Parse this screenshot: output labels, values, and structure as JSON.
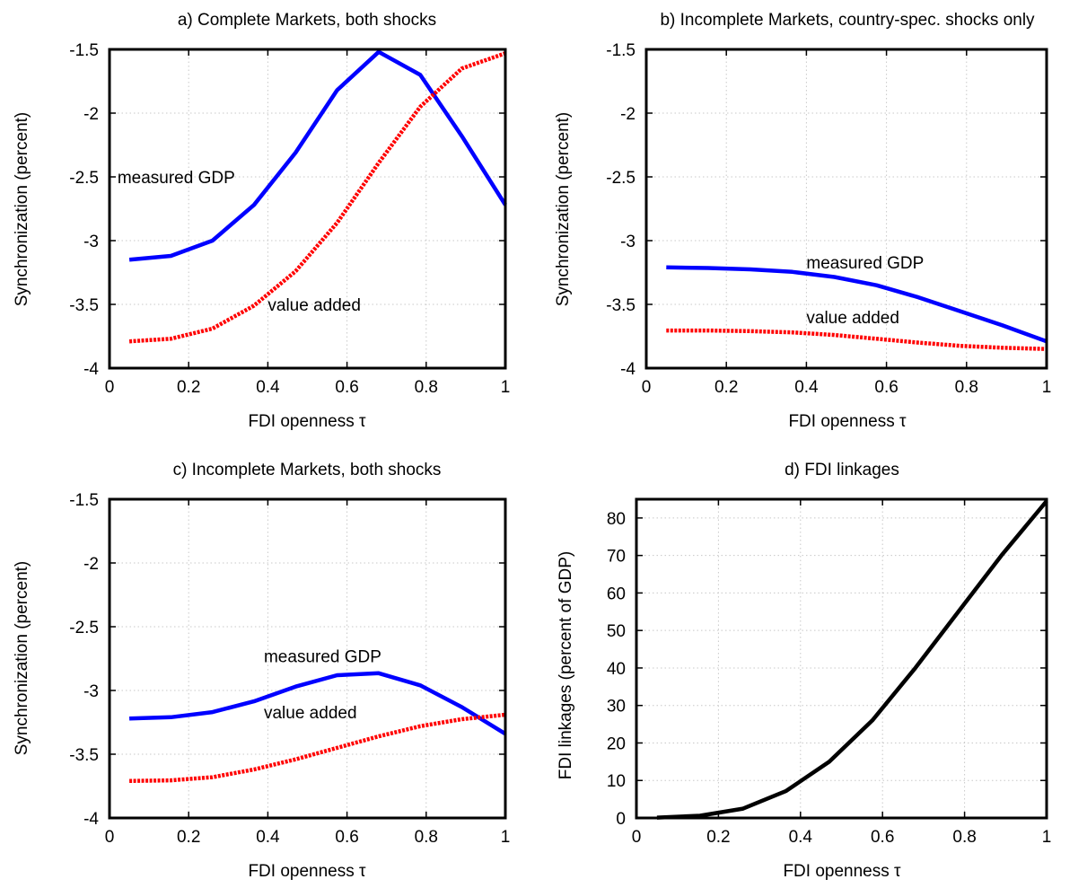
{
  "chart_data": [
    {
      "type": "line",
      "title": "a) Complete Markets, both shocks",
      "xlabel": "FDI openness τ",
      "ylabel": "Synchronization (percent)",
      "xlim": [
        0,
        1
      ],
      "ylim": [
        -4,
        -1.5
      ],
      "xticks": [
        "0",
        "0.2",
        "0.4",
        "0.6",
        "0.8",
        "1"
      ],
      "yticks": [
        "-4",
        "-3.5",
        "-3",
        "-2.5",
        "-2",
        "-1.5"
      ],
      "grid": true,
      "x": [
        0.05,
        0.155,
        0.26,
        0.365,
        0.47,
        0.575,
        0.68,
        0.785,
        0.89,
        1.0
      ],
      "series": [
        {
          "name": "measured GDP",
          "color": "#0000ff",
          "style": "solid",
          "values": [
            -3.15,
            -3.12,
            -3.0,
            -2.72,
            -2.31,
            -1.82,
            -1.52,
            -1.7,
            -2.18,
            -2.72
          ]
        },
        {
          "name": "value added",
          "color": "#ff0000",
          "style": "dotted",
          "values": [
            -3.79,
            -3.77,
            -3.69,
            -3.51,
            -3.24,
            -2.86,
            -2.39,
            -1.95,
            -1.65,
            -1.53
          ]
        }
      ],
      "annotations": [
        {
          "text": "measured GDP",
          "x": 0.02,
          "y": -2.5
        },
        {
          "text": "value added",
          "x": 0.4,
          "y": -3.5
        }
      ]
    },
    {
      "type": "line",
      "title": "b) Incomplete Markets, country-spec. shocks only",
      "xlabel": "FDI openness τ",
      "ylabel": "Synchronization (percent)",
      "xlim": [
        0,
        1
      ],
      "ylim": [
        -4,
        -1.5
      ],
      "xticks": [
        "0",
        "0.2",
        "0.4",
        "0.6",
        "0.8",
        "1"
      ],
      "yticks": [
        "-4",
        "-3.5",
        "-3",
        "-2.5",
        "-2",
        "-1.5"
      ],
      "grid": true,
      "x": [
        0.05,
        0.155,
        0.26,
        0.365,
        0.47,
        0.575,
        0.68,
        0.785,
        0.89,
        1.0
      ],
      "series": [
        {
          "name": "measured GDP",
          "color": "#0000ff",
          "style": "solid",
          "values": [
            -3.21,
            -3.215,
            -3.225,
            -3.245,
            -3.285,
            -3.35,
            -3.445,
            -3.555,
            -3.665,
            -3.79
          ]
        },
        {
          "name": "value added",
          "color": "#ff0000",
          "style": "dotted",
          "values": [
            -3.705,
            -3.705,
            -3.71,
            -3.72,
            -3.74,
            -3.77,
            -3.8,
            -3.825,
            -3.84,
            -3.85
          ]
        }
      ],
      "annotations": [
        {
          "text": "measured GDP",
          "x": 0.4,
          "y": -3.17
        },
        {
          "text": "value added",
          "x": 0.4,
          "y": -3.6
        }
      ]
    },
    {
      "type": "line",
      "title": "c) Incomplete Markets, both shocks",
      "xlabel": "FDI openness τ",
      "ylabel": "Synchronization (percent)",
      "xlim": [
        0,
        1
      ],
      "ylim": [
        -4,
        -1.5
      ],
      "xticks": [
        "0",
        "0.2",
        "0.4",
        "0.6",
        "0.8",
        "1"
      ],
      "yticks": [
        "-4",
        "-3.5",
        "-3",
        "-2.5",
        "-2",
        "-1.5"
      ],
      "grid": true,
      "x": [
        0.05,
        0.155,
        0.26,
        0.365,
        0.47,
        0.575,
        0.68,
        0.785,
        0.89,
        1.0
      ],
      "series": [
        {
          "name": "measured GDP",
          "color": "#0000ff",
          "style": "solid",
          "values": [
            -3.22,
            -3.21,
            -3.17,
            -3.085,
            -2.97,
            -2.88,
            -2.865,
            -2.96,
            -3.13,
            -3.34
          ]
        },
        {
          "name": "value added",
          "color": "#ff0000",
          "style": "dotted",
          "values": [
            -3.71,
            -3.705,
            -3.68,
            -3.62,
            -3.54,
            -3.45,
            -3.36,
            -3.28,
            -3.225,
            -3.19
          ]
        }
      ],
      "annotations": [
        {
          "text": "measured GDP",
          "x": 0.39,
          "y": -2.73
        },
        {
          "text": "value added",
          "x": 0.39,
          "y": -3.17
        }
      ]
    },
    {
      "type": "line",
      "title": "d) FDI linkages",
      "xlabel": "FDI openness τ",
      "ylabel": "FDI linkages (percent of GDP)",
      "xlim": [
        0,
        1
      ],
      "ylim": [
        0,
        85
      ],
      "xticks": [
        "0",
        "0.2",
        "0.4",
        "0.6",
        "0.8",
        "1"
      ],
      "yticks": [
        "0",
        "10",
        "20",
        "30",
        "40",
        "50",
        "60",
        "70",
        "80"
      ],
      "grid": true,
      "x": [
        0.05,
        0.155,
        0.26,
        0.365,
        0.47,
        0.575,
        0.68,
        0.785,
        0.89,
        1.0
      ],
      "series": [
        {
          "name": "",
          "color": "#000000",
          "style": "solid",
          "values": [
            0.1,
            0.6,
            2.5,
            7.2,
            15.0,
            26.0,
            40.0,
            55.0,
            70.0,
            84.5
          ]
        }
      ],
      "annotations": []
    }
  ]
}
